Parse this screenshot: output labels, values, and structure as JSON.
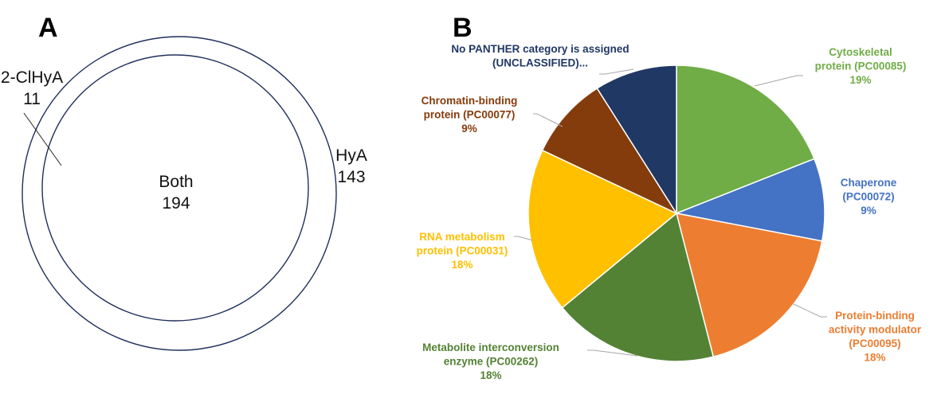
{
  "panels": {
    "a_label": "A",
    "b_label": "B"
  },
  "chart_data": [
    {
      "type": "venn",
      "sets": [
        {
          "name": "2-ClHyA",
          "label": "2-ClHyA",
          "value": "11"
        },
        {
          "name": "HyA",
          "label": "HyA",
          "value": "143"
        }
      ],
      "overlap": {
        "label": "Both",
        "value": "194"
      },
      "colors": {
        "outline": "#1f2f5c"
      }
    },
    {
      "type": "pie",
      "legend": "none",
      "slices": [
        {
          "lines": [
            "Cytoskeletal",
            "protein (PC00085)"
          ],
          "pct": "19%",
          "value": 19,
          "color": "#70ad47"
        },
        {
          "lines": [
            "Chaperone",
            "(PC00072)"
          ],
          "pct": "9%",
          "value": 9,
          "color": "#4472c4"
        },
        {
          "lines": [
            "Protein-binding",
            "activity modulator",
            "(PC00095)"
          ],
          "pct": "18%",
          "value": 18,
          "color": "#ed7d31"
        },
        {
          "lines": [
            "Metabolite interconversion",
            "enzyme (PC00262)"
          ],
          "pct": "18%",
          "value": 18,
          "color": "#548235"
        },
        {
          "lines": [
            "RNA metabolism",
            "protein (PC00031)"
          ],
          "pct": "18%",
          "value": 18,
          "color": "#ffc000"
        },
        {
          "lines": [
            "Chromatin-binding",
            "protein (PC00077)"
          ],
          "pct": "9%",
          "value": 9,
          "color": "#843c0c"
        },
        {
          "lines": [
            "No PANTHER category is assigned",
            "(UNCLASSIFIED)..."
          ],
          "pct": "",
          "value": 9,
          "color": "#203864"
        }
      ],
      "label_colors": [
        "#70ad47",
        "#4472c4",
        "#ed7d31",
        "#548235",
        "#ffc000",
        "#843c0c",
        "#203864"
      ]
    }
  ]
}
